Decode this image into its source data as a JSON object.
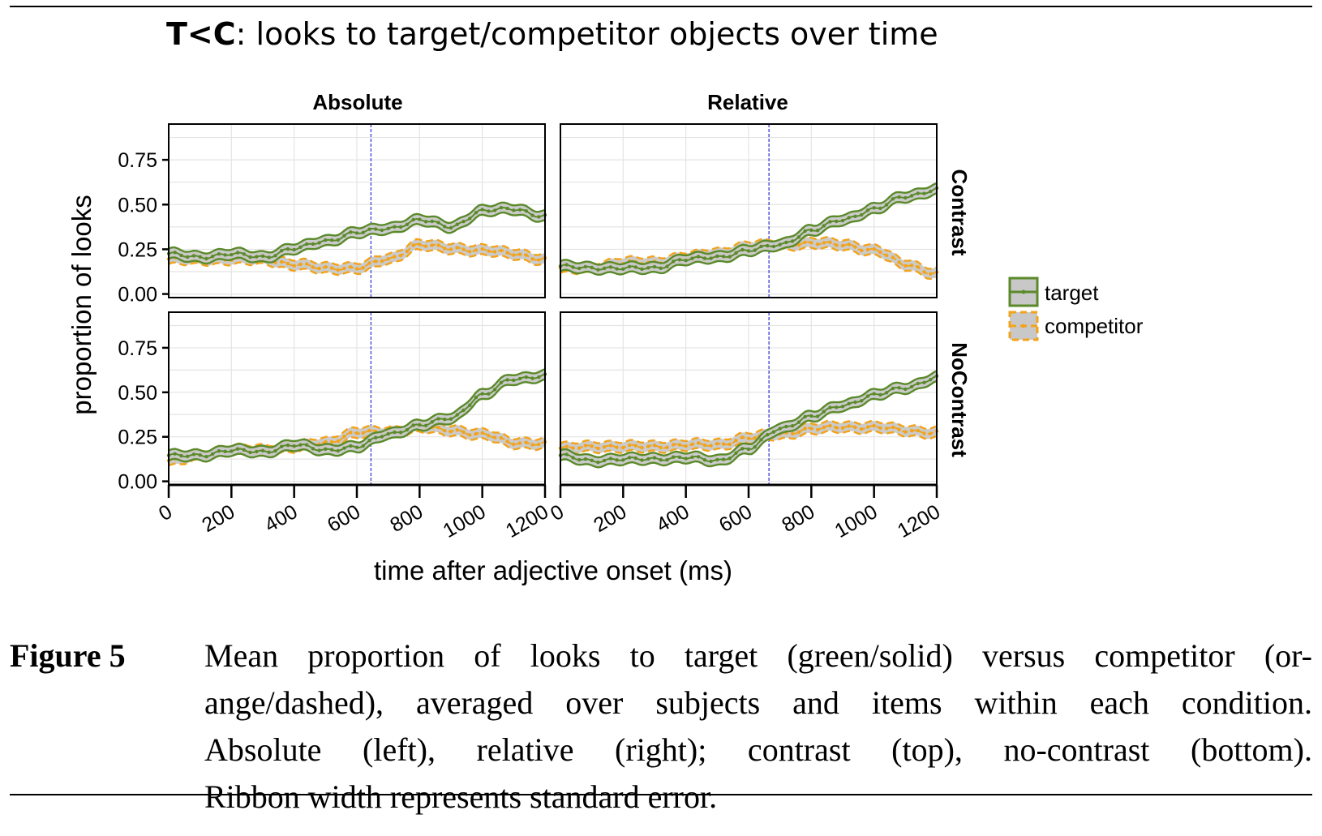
{
  "figure": {
    "title_prefix": "T<C",
    "title_rest": ": looks to target/competitor objects over time",
    "caption_label": "Figure 5",
    "caption_lines": [
      "Mean proportion of looks to target (green/solid) versus competitor (or-",
      "ange/dashed), averaged over subjects and items within each condition.",
      "Absolute (left), relative (right); contrast (top), no-contrast (bottom).",
      "Ribbon width represents standard error."
    ]
  },
  "chart_data": {
    "type": "line",
    "xlabel": "time after adjective onset (ms)",
    "ylabel": "proportion of looks",
    "xlim": [
      0,
      1200
    ],
    "ylim": [
      -0.02,
      0.95
    ],
    "x_ticks": [
      0,
      200,
      400,
      600,
      800,
      1000,
      1200
    ],
    "x_tick_labels": [
      "0",
      "200",
      "400",
      "600",
      "800",
      "1000",
      "1200"
    ],
    "y_ticks": [
      0,
      0.25,
      0.5,
      0.75
    ],
    "y_tick_labels": [
      "0.00",
      "0.25",
      "0.50",
      "0.75"
    ],
    "grid": true,
    "facet_columns": [
      "Absolute",
      "Relative"
    ],
    "facet_rows": [
      "Contrast",
      "NoContrast"
    ],
    "legend": {
      "position": "right",
      "entries": [
        "target",
        "competitor"
      ]
    },
    "colors": {
      "target": "#5b8a2a",
      "competitor": "#f2a31b",
      "ribbon": "#c8c8c8",
      "vline": "#3c3cd8"
    },
    "ribbon_halfwidth": 0.028,
    "x": [
      0,
      100,
      200,
      300,
      400,
      500,
      600,
      700,
      800,
      900,
      1000,
      1100,
      1200
    ],
    "panels": [
      {
        "column": "Absolute",
        "row": "Contrast",
        "vline_x": 645,
        "series": [
          {
            "name": "target",
            "values": [
              0.22,
              0.21,
              0.22,
              0.21,
              0.25,
              0.3,
              0.34,
              0.37,
              0.41,
              0.38,
              0.46,
              0.48,
              0.43
            ]
          },
          {
            "name": "competitor",
            "values": [
              0.19,
              0.2,
              0.19,
              0.2,
              0.16,
              0.15,
              0.14,
              0.2,
              0.27,
              0.26,
              0.24,
              0.23,
              0.19
            ]
          }
        ]
      },
      {
        "column": "Relative",
        "row": "Contrast",
        "vline_x": 665,
        "series": [
          {
            "name": "target",
            "values": [
              0.15,
              0.15,
              0.14,
              0.15,
              0.19,
              0.21,
              0.24,
              0.28,
              0.35,
              0.42,
              0.47,
              0.55,
              0.58
            ]
          },
          {
            "name": "competitor",
            "values": [
              0.14,
              0.15,
              0.17,
              0.18,
              0.2,
              0.23,
              0.26,
              0.28,
              0.28,
              0.28,
              0.24,
              0.17,
              0.11
            ]
          }
        ]
      },
      {
        "column": "Absolute",
        "row": "NoContrast",
        "vline_x": 645,
        "series": [
          {
            "name": "target",
            "values": [
              0.14,
              0.15,
              0.17,
              0.17,
              0.2,
              0.18,
              0.19,
              0.27,
              0.31,
              0.36,
              0.48,
              0.58,
              0.59
            ]
          },
          {
            "name": "competitor",
            "values": [
              0.11,
              0.15,
              0.17,
              0.18,
              0.19,
              0.22,
              0.27,
              0.28,
              0.3,
              0.29,
              0.26,
              0.22,
              0.21
            ]
          }
        ]
      },
      {
        "column": "Relative",
        "row": "NoContrast",
        "vline_x": 665,
        "series": [
          {
            "name": "target",
            "values": [
              0.14,
              0.12,
              0.12,
              0.13,
              0.13,
              0.12,
              0.18,
              0.3,
              0.36,
              0.43,
              0.48,
              0.53,
              0.58
            ]
          },
          {
            "name": "competitor",
            "values": [
              0.18,
              0.2,
              0.19,
              0.2,
              0.2,
              0.21,
              0.24,
              0.27,
              0.29,
              0.31,
              0.3,
              0.29,
              0.27
            ]
          }
        ]
      }
    ]
  }
}
